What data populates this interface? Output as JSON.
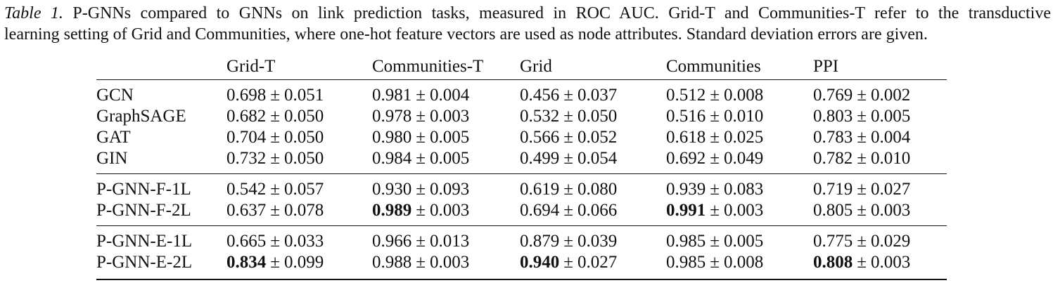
{
  "caption": {
    "label": "Table 1.",
    "line1": " P-GNNs compared to GNNs on link prediction tasks, measured in ROC AUC. Grid-T and Communities-T refer to the transductive",
    "line2": "learning setting of Grid and Communities, where one-hot feature vectors are used as node attributes. Standard deviation errors are given."
  },
  "table": {
    "corner": "",
    "columns": [
      "Grid-T",
      "Communities-T",
      "Grid",
      "Communities",
      "PPI"
    ],
    "pm": "±",
    "groups": [
      {
        "rows": [
          {
            "model": "GCN",
            "cells": [
              {
                "mean": "0.698",
                "std": "0.051"
              },
              {
                "mean": "0.981",
                "std": "0.004"
              },
              {
                "mean": "0.456",
                "std": "0.037"
              },
              {
                "mean": "0.512",
                "std": "0.008"
              },
              {
                "mean": "0.769",
                "std": "0.002"
              }
            ]
          },
          {
            "model": "GraphSAGE",
            "cells": [
              {
                "mean": "0.682",
                "std": "0.050"
              },
              {
                "mean": "0.978",
                "std": "0.003"
              },
              {
                "mean": "0.532",
                "std": "0.050"
              },
              {
                "mean": "0.516",
                "std": "0.010"
              },
              {
                "mean": "0.803",
                "std": "0.005"
              }
            ]
          },
          {
            "model": "GAT",
            "cells": [
              {
                "mean": "0.704",
                "std": "0.050"
              },
              {
                "mean": "0.980",
                "std": "0.005"
              },
              {
                "mean": "0.566",
                "std": "0.052"
              },
              {
                "mean": "0.618",
                "std": "0.025"
              },
              {
                "mean": "0.783",
                "std": "0.004"
              }
            ]
          },
          {
            "model": "GIN",
            "cells": [
              {
                "mean": "0.732",
                "std": "0.050"
              },
              {
                "mean": "0.984",
                "std": "0.005"
              },
              {
                "mean": "0.499",
                "std": "0.054"
              },
              {
                "mean": "0.692",
                "std": "0.049"
              },
              {
                "mean": "0.782",
                "std": "0.010"
              }
            ]
          }
        ]
      },
      {
        "rows": [
          {
            "model": "P-GNN-F-1L",
            "cells": [
              {
                "mean": "0.542",
                "std": "0.057"
              },
              {
                "mean": "0.930",
                "std": "0.093"
              },
              {
                "mean": "0.619",
                "std": "0.080"
              },
              {
                "mean": "0.939",
                "std": "0.083"
              },
              {
                "mean": "0.719",
                "std": "0.027"
              }
            ]
          },
          {
            "model": "P-GNN-F-2L",
            "cells": [
              {
                "mean": "0.637",
                "std": "0.078"
              },
              {
                "mean": "0.989",
                "std": "0.003",
                "best": true
              },
              {
                "mean": "0.694",
                "std": "0.066"
              },
              {
                "mean": "0.991",
                "std": "0.003",
                "best": true
              },
              {
                "mean": "0.805",
                "std": "0.003"
              }
            ]
          }
        ]
      },
      {
        "rows": [
          {
            "model": "P-GNN-E-1L",
            "cells": [
              {
                "mean": "0.665",
                "std": "0.033"
              },
              {
                "mean": "0.966",
                "std": "0.013"
              },
              {
                "mean": "0.879",
                "std": "0.039"
              },
              {
                "mean": "0.985",
                "std": "0.005"
              },
              {
                "mean": "0.775",
                "std": "0.029"
              }
            ]
          },
          {
            "model": "P-GNN-E-2L",
            "cells": [
              {
                "mean": "0.834",
                "std": "0.099",
                "best": true
              },
              {
                "mean": "0.988",
                "std": "0.003"
              },
              {
                "mean": "0.940",
                "std": "0.027",
                "best": true
              },
              {
                "mean": "0.985",
                "std": "0.008"
              },
              {
                "mean": "0.808",
                "std": "0.003",
                "best": true
              }
            ]
          }
        ]
      }
    ]
  }
}
